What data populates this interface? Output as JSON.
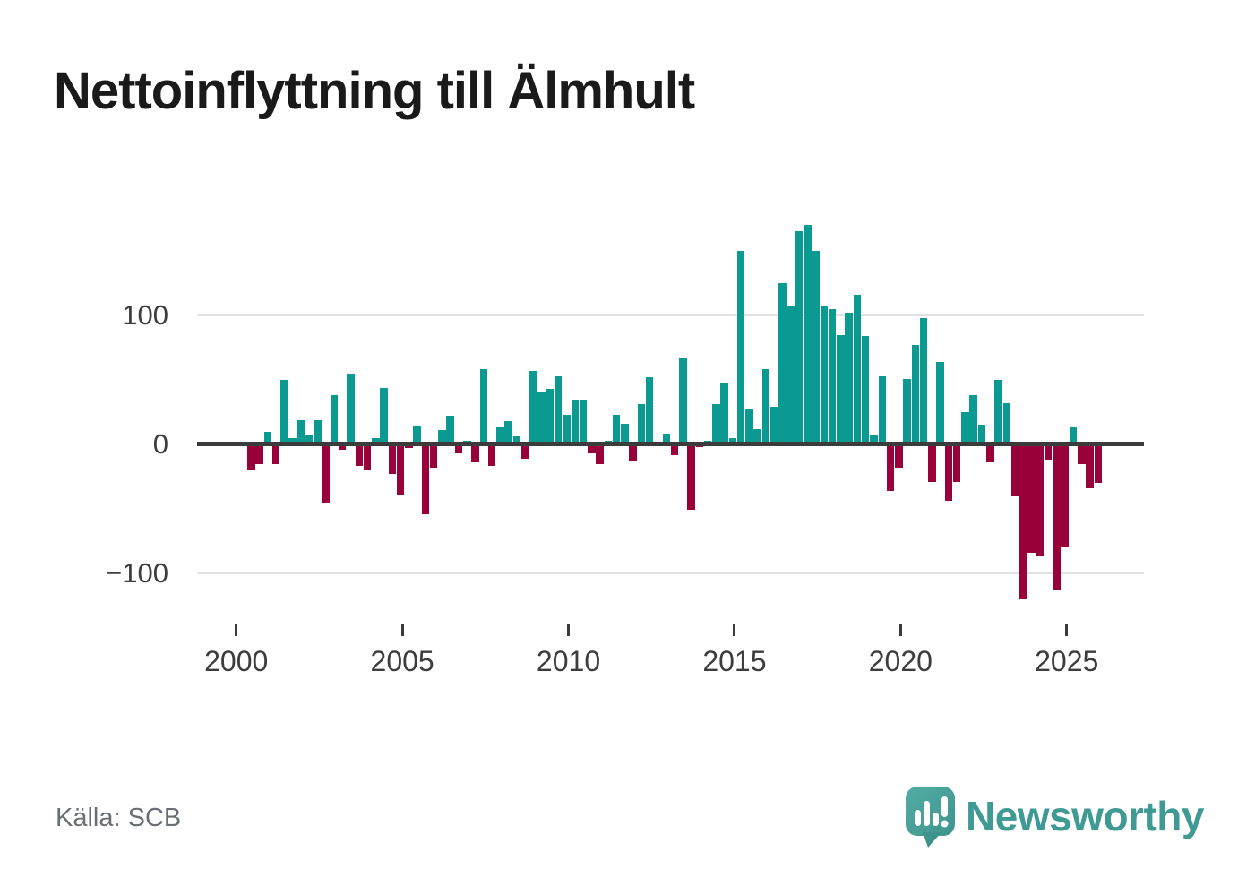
{
  "title": "Nettoinflyttning till Älmhult",
  "source": "Källa: SCB",
  "brand": {
    "wordmark": "Newsworthy"
  },
  "colors": {
    "positive": "#0a9a92",
    "negative": "#99013b",
    "axis": "#3b3b3b",
    "grid": "#e2e2e2",
    "tick_text": "#3d3d3d",
    "title_text": "#1a1a1a",
    "source_text": "#6a6e75",
    "brand_teal": "#3f9a94",
    "logo_teal_light": "#52ada5",
    "logo_teal_dark": "#3e948d"
  },
  "chart_data": {
    "type": "bar",
    "title": "Nettoinflyttning till Älmhult",
    "frequency": "quarterly",
    "start_period": {
      "year": 2000,
      "quarter": 2
    },
    "x_axis": {
      "tick_years": [
        2000,
        2005,
        2010,
        2015,
        2020,
        2025
      ],
      "tick_labels": [
        "2000",
        "2005",
        "2010",
        "2015",
        "2020",
        "2025"
      ]
    },
    "y_axis": {
      "ticks": [
        {
          "label": "100",
          "value": 100
        },
        {
          "label": "0",
          "value": 0
        },
        {
          "label": "−100",
          "value": -100
        }
      ],
      "gridline_values": [
        100,
        -100
      ],
      "ylim": [
        -135,
        185
      ]
    },
    "legend": null,
    "grid": "horizontal-light",
    "series": [
      {
        "name": "Nettoinflyttning",
        "values": [
          -20,
          -15,
          10,
          -15,
          50,
          5,
          19,
          7,
          19,
          -46,
          38,
          -4,
          55,
          -17,
          -20,
          5,
          44,
          -23,
          -39,
          -3,
          14,
          -54,
          -18,
          11,
          22,
          -7,
          3,
          -14,
          58,
          -17,
          13,
          18,
          6,
          -11,
          57,
          40,
          43,
          53,
          23,
          34,
          35,
          -7,
          -15,
          3,
          23,
          16,
          -13,
          31,
          52,
          0,
          8,
          -8,
          67,
          -51,
          -2,
          3,
          31,
          47,
          5,
          150,
          27,
          12,
          58,
          29,
          125,
          107,
          165,
          170,
          150,
          107,
          105,
          85,
          102,
          116,
          84,
          7,
          53,
          -36,
          -18,
          51,
          77,
          98,
          -29,
          64,
          -44,
          -29,
          25,
          38,
          15,
          -14,
          50,
          32,
          -40,
          -120,
          -84,
          -87,
          -12,
          -113,
          -80,
          13,
          -15,
          -34,
          -30
        ]
      }
    ]
  }
}
